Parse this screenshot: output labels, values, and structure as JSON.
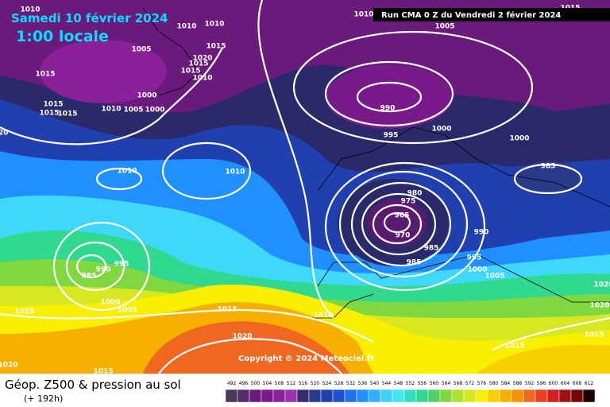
{
  "header": {
    "date": "Samedi 10 février 2024",
    "time": "1:00 locale",
    "run": "Run CMA 0 Z du Vendredi 2 février 2024"
  },
  "isobars": [
    1010,
    1010,
    1005,
    1015,
    1010,
    1010,
    1005,
    1015,
    1020,
    1015,
    1015,
    1010,
    1015,
    1000,
    1015,
    1015,
    1015,
    1010,
    1005,
    1000,
    990,
    1000,
    995,
    1000,
    985,
    1010,
    1010,
    1020,
    980,
    975,
    965,
    970,
    985,
    990,
    995,
    1000,
    1005,
    985,
    990,
    995,
    985,
    1000,
    1005,
    1015,
    1015,
    1010,
    1020,
    1020,
    1015,
    1015,
    1015,
    1020,
    1020
  ],
  "copyright": "Copyright © 2024 Meteociel.fr",
  "legend": {
    "title": "Géop. Z500 & pression au sol",
    "subtitle": "(+ 192h)",
    "scale": {
      "ticks": [
        492,
        496,
        500,
        504,
        508,
        512,
        516,
        520,
        524,
        528,
        532,
        536,
        540,
        544,
        548,
        552,
        556,
        560,
        564,
        568,
        572,
        576,
        580,
        584,
        588,
        592,
        596,
        600,
        604,
        608,
        612
      ],
      "colors": [
        "#4a3a5a",
        "#5a2a6a",
        "#6a1a7a",
        "#7a1a8a",
        "#8a209a",
        "#9a30aa",
        "#3a2a6a",
        "#2a3a8a",
        "#2040b0",
        "#2050d0",
        "#2070f0",
        "#2090ff",
        "#30b0ff",
        "#40d0f8",
        "#40e8f0",
        "#30e0c0",
        "#30d890",
        "#50d060",
        "#80d840",
        "#b0e030",
        "#d8e820",
        "#f8f000",
        "#f8d000",
        "#f8b000",
        "#f89000",
        "#f06820",
        "#e84020",
        "#d02020",
        "#a01010",
        "#700808",
        "#200000"
      ]
    }
  }
}
